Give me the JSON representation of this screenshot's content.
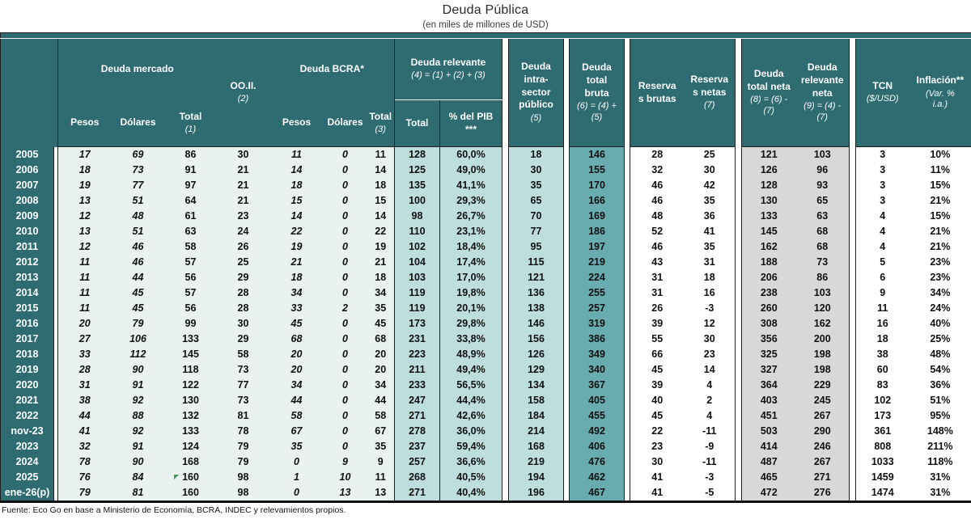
{
  "chart_data": {
    "type": "table",
    "title": "Deuda Pública",
    "subtitle": "(en miles de millones de USD)",
    "source": "Fuente: Eco Go en base a Ministerio de Economía, BCRA, INDEC y relevamientos propios.",
    "columns": [
      "Deuda mercado - Pesos",
      "Deuda mercado - Dólares",
      "Deuda mercado - Total (1)",
      "OO.II. (2)",
      "Deuda BCRA* - Pesos",
      "Deuda BCRA* - Dólares",
      "Deuda BCRA* - Total (3)",
      "Deuda relevante (4)=(1)+(2)+(3) - Total",
      "Deuda relevante - % del PIB ***",
      "Deuda intra-sector público (5)",
      "Deuda total bruta (6)=(4)+(5)",
      "Reservas brutas",
      "Reservas netas (7)",
      "Deuda total neta (8)=(6)-(7)",
      "Deuda relevante neta (9)=(4)-(7)",
      "TCN ($/USD)",
      "Inflación** (Var. % i.a.)"
    ],
    "rows": [
      {
        "label": "2005",
        "values": [
          17,
          69,
          86,
          30,
          11,
          0,
          11,
          128,
          "60,0%",
          18,
          146,
          28,
          25,
          121,
          103,
          3,
          "10%"
        ]
      },
      {
        "label": "2006",
        "values": [
          18,
          73,
          91,
          21,
          14,
          0,
          14,
          125,
          "49,0%",
          30,
          155,
          32,
          30,
          126,
          96,
          3,
          "11%"
        ]
      },
      {
        "label": "2007",
        "values": [
          19,
          77,
          97,
          21,
          18,
          0,
          18,
          135,
          "41,1%",
          35,
          170,
          46,
          42,
          128,
          93,
          3,
          "15%"
        ]
      },
      {
        "label": "2008",
        "values": [
          13,
          51,
          64,
          21,
          15,
          0,
          15,
          100,
          "29,3%",
          65,
          166,
          46,
          35,
          130,
          65,
          3,
          "21%"
        ]
      },
      {
        "label": "2009",
        "values": [
          12,
          48,
          61,
          23,
          14,
          0,
          14,
          98,
          "26,7%",
          70,
          169,
          48,
          36,
          133,
          63,
          4,
          "15%"
        ]
      },
      {
        "label": "2010",
        "values": [
          13,
          51,
          63,
          24,
          22,
          0,
          22,
          110,
          "23,1%",
          77,
          186,
          52,
          41,
          145,
          68,
          4,
          "21%"
        ]
      },
      {
        "label": "2011",
        "values": [
          12,
          46,
          58,
          26,
          19,
          0,
          19,
          102,
          "18,4%",
          95,
          197,
          46,
          35,
          162,
          68,
          4,
          "21%"
        ]
      },
      {
        "label": "2012",
        "values": [
          11,
          46,
          57,
          25,
          21,
          0,
          21,
          104,
          "17,4%",
          115,
          219,
          43,
          31,
          188,
          73,
          5,
          "23%"
        ]
      },
      {
        "label": "2013",
        "values": [
          11,
          44,
          56,
          29,
          18,
          0,
          18,
          103,
          "17,0%",
          121,
          224,
          31,
          18,
          206,
          86,
          6,
          "23%"
        ]
      },
      {
        "label": "2014",
        "values": [
          11,
          45,
          57,
          28,
          34,
          0,
          34,
          119,
          "19,8%",
          136,
          255,
          31,
          16,
          238,
          103,
          9,
          "34%"
        ]
      },
      {
        "label": "2015",
        "values": [
          11,
          45,
          56,
          28,
          33,
          2,
          35,
          119,
          "20,1%",
          138,
          257,
          26,
          -3,
          260,
          120,
          11,
          "24%"
        ]
      },
      {
        "label": "2016",
        "values": [
          20,
          79,
          99,
          30,
          45,
          0,
          45,
          173,
          "29,8%",
          146,
          319,
          39,
          12,
          308,
          162,
          16,
          "40%"
        ]
      },
      {
        "label": "2017",
        "values": [
          27,
          106,
          133,
          29,
          68,
          0,
          68,
          231,
          "33,8%",
          156,
          386,
          55,
          30,
          356,
          200,
          18,
          "25%"
        ]
      },
      {
        "label": "2018",
        "values": [
          33,
          112,
          145,
          58,
          20,
          0,
          20,
          223,
          "48,9%",
          126,
          349,
          66,
          23,
          325,
          198,
          38,
          "48%"
        ]
      },
      {
        "label": "2019",
        "values": [
          28,
          90,
          118,
          73,
          20,
          0,
          20,
          211,
          "49,4%",
          129,
          340,
          45,
          14,
          327,
          198,
          60,
          "54%"
        ]
      },
      {
        "label": "2020",
        "values": [
          31,
          91,
          122,
          77,
          34,
          0,
          34,
          233,
          "56,5%",
          134,
          367,
          39,
          4,
          364,
          229,
          83,
          "36%"
        ]
      },
      {
        "label": "2021",
        "values": [
          38,
          92,
          130,
          73,
          44,
          0,
          44,
          247,
          "44,4%",
          158,
          405,
          40,
          2,
          403,
          245,
          102,
          "51%"
        ]
      },
      {
        "label": "2022",
        "values": [
          44,
          88,
          132,
          81,
          58,
          0,
          58,
          271,
          "42,6%",
          184,
          455,
          45,
          4,
          451,
          267,
          173,
          "95%"
        ]
      },
      {
        "label": "nov-23",
        "values": [
          41,
          92,
          133,
          78,
          67,
          0,
          67,
          278,
          "36,0%",
          214,
          492,
          22,
          -11,
          503,
          290,
          361,
          "148%"
        ]
      },
      {
        "label": "2023",
        "values": [
          32,
          91,
          124,
          79,
          35,
          0,
          35,
          237,
          "59,4%",
          168,
          406,
          23,
          -9,
          414,
          246,
          808,
          "211%"
        ]
      },
      {
        "label": "2024",
        "values": [
          78,
          90,
          168,
          79,
          0,
          9,
          9,
          257,
          "36,6%",
          219,
          476,
          30,
          -11,
          487,
          267,
          1033,
          "118%"
        ]
      },
      {
        "label": "2025",
        "values": [
          76,
          84,
          160,
          98,
          1,
          10,
          11,
          268,
          "40,5%",
          194,
          462,
          41,
          -3,
          465,
          271,
          1459,
          "31%"
        ]
      },
      {
        "label": "ene-26(p)",
        "values": [
          79,
          81,
          160,
          98,
          0,
          13,
          13,
          271,
          "40,4%",
          196,
          467,
          41,
          -5,
          472,
          276,
          1474,
          "31%"
        ]
      }
    ]
  },
  "headers": {
    "mercado": {
      "title": "Deuda mercado"
    },
    "ooii": {
      "title": "OO.II.",
      "formula": "(2)"
    },
    "bcra": {
      "title": "Deuda BCRA*"
    },
    "relevante": {
      "title": "Deuda relevante",
      "formula": "(4) = (1) + (2) + (3)"
    },
    "pesos1": {
      "title": "Pesos"
    },
    "dolares1": {
      "title": "Dólares"
    },
    "total1": {
      "title": "Total",
      "formula": "(1)"
    },
    "pesos2": {
      "title": "Pesos"
    },
    "dolares2": {
      "title": "Dólares"
    },
    "total3": {
      "title": "Total",
      "formula": "(3)"
    },
    "relev_total": {
      "title": "Total"
    },
    "pib": {
      "title": "% del PIB\n***"
    },
    "intra": {
      "title": "Deuda\nintra-\nsector\npúblico",
      "formula": "(5)"
    },
    "bruta": {
      "title": "Deuda\ntotal\nbruta",
      "formula": "(6) = (4) +\n(5)"
    },
    "reservas_brutas": {
      "title": "Reserva\ns brutas"
    },
    "reservas_netas": {
      "title": "Reserva\ns netas",
      "formula": "(7)"
    },
    "total_neta": {
      "title": "Deuda\ntotal neta",
      "formula": "(8) = (6) -\n(7)"
    },
    "relevante_neta": {
      "title": "Deuda\nrelevante\nneta",
      "formula": "(9) = (4) -\n(7)"
    },
    "tcn": {
      "title": "TCN",
      "formula": "($/USD)"
    },
    "inflacion": {
      "title": "Inflación**",
      "formula": "(Var. %\ni.a.)"
    }
  },
  "marker": {
    "row_label": "2025",
    "value_index": 2,
    "color": "#3f9b4e"
  },
  "colors": {
    "header_teal": "#2e6c71",
    "light_teal": "#bedddd",
    "mid_teal": "#69acb0",
    "pale_green": "#e9f2f0",
    "gray": "#d8d8d8",
    "marker_green": "#3f9b4e"
  }
}
